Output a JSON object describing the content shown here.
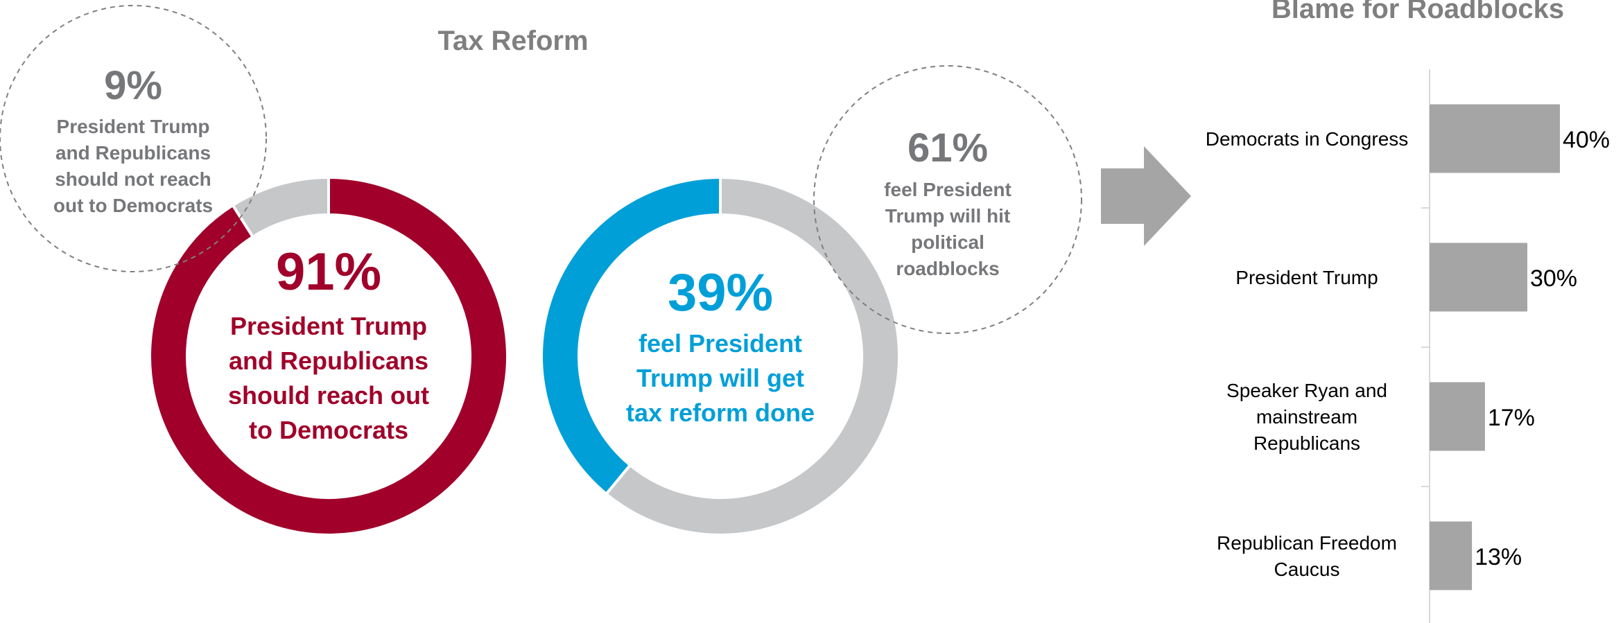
{
  "left_section": {
    "title": "Tax Reform"
  },
  "right_section": {
    "title": "Blame for Roadblocks"
  },
  "colors": {
    "red": "#a0002a",
    "blue": "#009fd8",
    "gray_ring": "#c6c7c9",
    "gray_text": "#76777a",
    "bar": "#a5a5a5",
    "arrow": "#a5a5a5",
    "dash": "#7f7f7f"
  },
  "chart_data": [
    {
      "type": "pie",
      "variant": "donut",
      "slices": [
        {
          "label": "President Trump and Republicans should reach out to Democrats",
          "value": 91,
          "color": "#a0002a"
        },
        {
          "label": "President Trump and Republicans should not reach out to Democrats",
          "value": 9,
          "color": "#c6c7c9"
        }
      ],
      "center_value": "91%",
      "center_text": [
        "President Trump",
        "and Republicans",
        "should reach out",
        "to Democrats"
      ],
      "callout_value": "9%",
      "callout_text": [
        "President Trump",
        "and Republicans",
        "should not reach",
        "out to Democrats"
      ]
    },
    {
      "type": "pie",
      "variant": "donut",
      "slices": [
        {
          "label": "feel President Trump will get tax reform done",
          "value": 39,
          "color": "#009fd8"
        },
        {
          "label": "feel President Trump will hit political roadblocks",
          "value": 61,
          "color": "#c6c7c9"
        }
      ],
      "center_value": "39%",
      "center_text": [
        "feel President",
        "Trump will get",
        "tax reform done"
      ],
      "callout_value": "61%",
      "callout_text": [
        "feel President",
        "Trump will hit",
        "political",
        "roadblocks"
      ]
    },
    {
      "type": "bar",
      "orientation": "horizontal",
      "title": "Blame for Roadblocks",
      "categories": [
        [
          "Democrats in Congress"
        ],
        [
          "President Trump"
        ],
        [
          "Speaker Ryan and",
          "mainstream",
          "Republicans"
        ],
        [
          "Republican Freedom",
          "Caucus"
        ]
      ],
      "values": [
        40,
        30,
        17,
        13
      ],
      "value_labels": [
        "40%",
        "30%",
        "17%",
        "13%"
      ],
      "xlim": [
        0,
        40
      ]
    }
  ]
}
